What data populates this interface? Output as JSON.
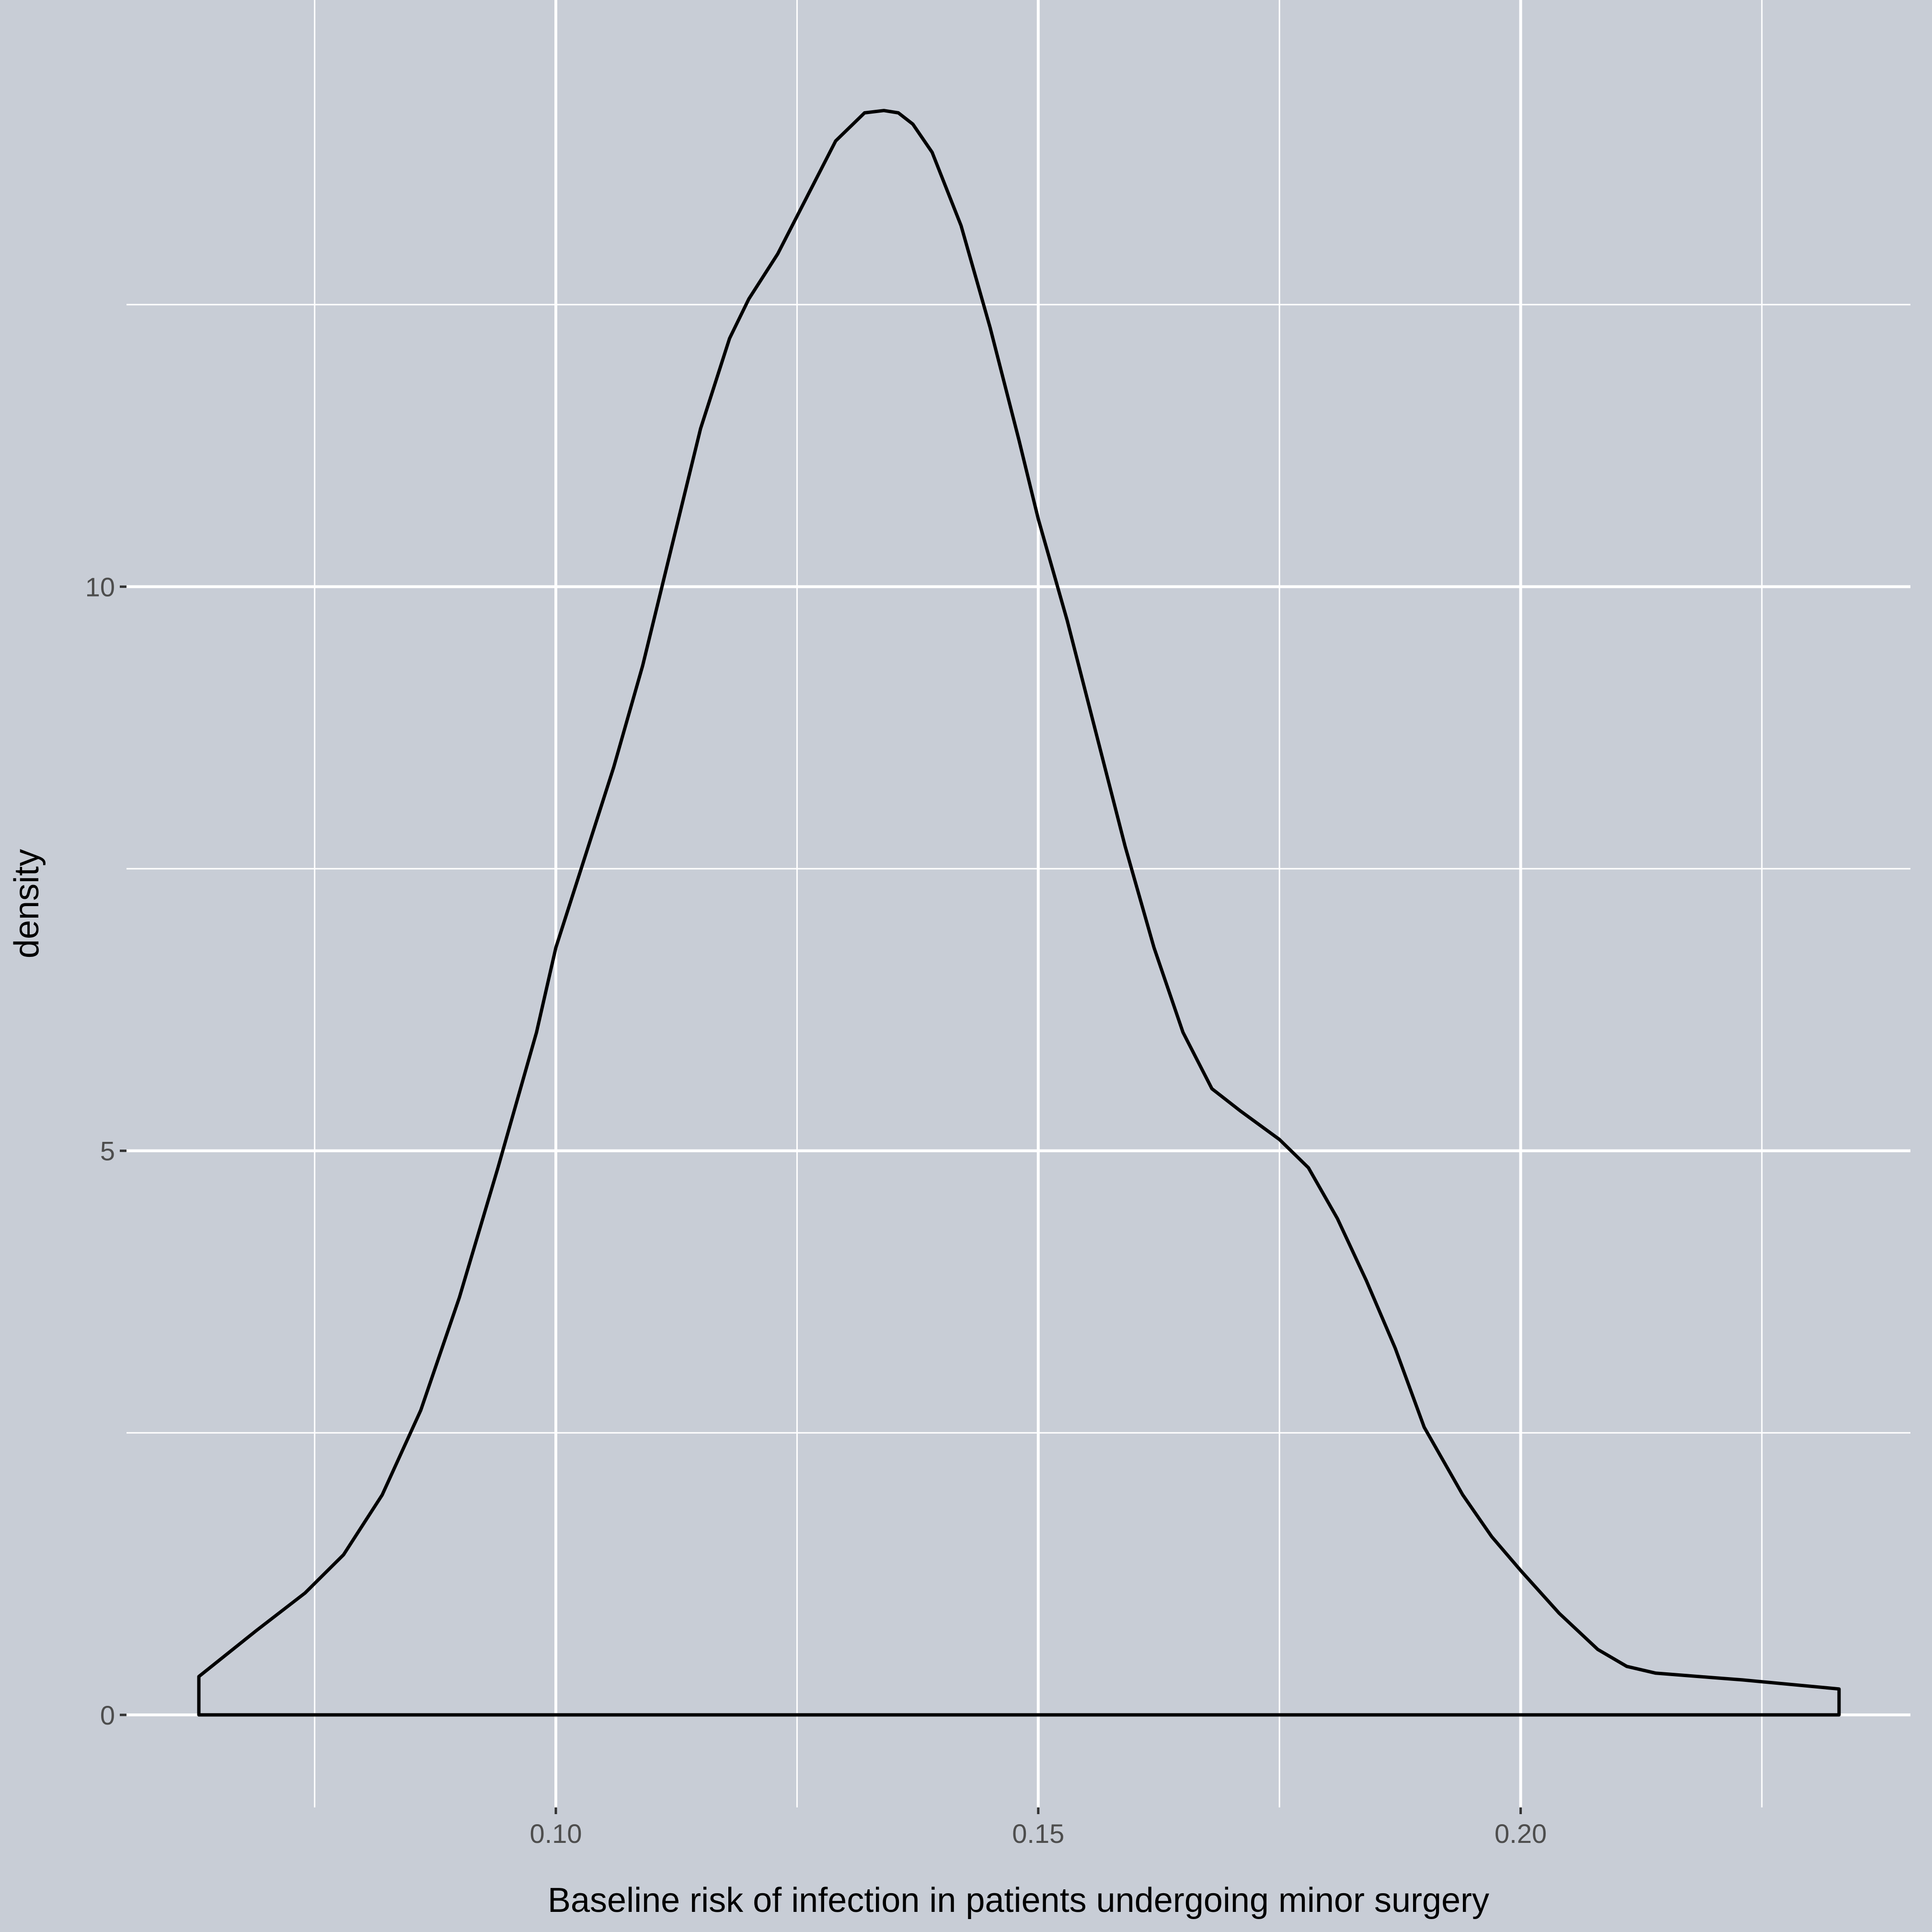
{
  "colors": {
    "panel_background": "#c8cdd6",
    "plot_background": "#c8cdd6",
    "grid_major": "#ffffff",
    "grid_minor": "#ffffff",
    "density_line": "#000000",
    "tick_text": "#4d4d4d"
  },
  "chart_data": {
    "type": "area",
    "geom": "density",
    "title": "",
    "xlabel": "Baseline risk of infection in patients undergoing minor surgery",
    "ylabel": "density",
    "xlim": [
      0.0555,
      0.2404
    ],
    "ylim": [
      -0.82,
      15.2
    ],
    "x_ticks": [
      0.1,
      0.15,
      0.2
    ],
    "x_tick_labels": [
      "0.10",
      "0.15",
      "0.20"
    ],
    "x_minor_ticks": [
      0.075,
      0.125,
      0.175,
      0.225
    ],
    "y_ticks": [
      0,
      5,
      10
    ],
    "y_tick_labels": [
      "0",
      "5",
      "10"
    ],
    "y_minor_ticks": [
      2.5,
      7.5,
      12.5
    ],
    "grid": true,
    "fill": "none",
    "series": [
      {
        "x": [
          0.063,
          0.063,
          0.069,
          0.074,
          0.078,
          0.082,
          0.086,
          0.09,
          0.094,
          0.098,
          0.1,
          0.103,
          0.106,
          0.109,
          0.112,
          0.115,
          0.118,
          0.12,
          0.123,
          0.126,
          0.129,
          0.132,
          0.134,
          0.1355,
          0.137,
          0.139,
          0.142,
          0.145,
          0.148,
          0.15,
          0.153,
          0.156,
          0.159,
          0.162,
          0.165,
          0.168,
          0.171,
          0.175,
          0.178,
          0.181,
          0.184,
          0.187,
          0.19,
          0.194,
          0.197,
          0.2,
          0.204,
          0.208,
          0.211,
          0.214,
          0.217,
          0.22,
          0.223,
          0.233,
          0.233,
          0.063
        ],
        "y": [
          0.0,
          0.34,
          0.75,
          1.08,
          1.42,
          1.95,
          2.7,
          3.7,
          4.85,
          6.05,
          6.8,
          7.6,
          8.4,
          9.3,
          10.35,
          11.4,
          12.2,
          12.55,
          12.95,
          13.45,
          13.95,
          14.2,
          14.22,
          14.2,
          14.1,
          13.85,
          13.2,
          12.3,
          11.3,
          10.6,
          9.7,
          8.7,
          7.7,
          6.8,
          6.05,
          5.55,
          5.35,
          5.1,
          4.85,
          4.4,
          3.85,
          3.25,
          2.55,
          1.95,
          1.58,
          1.28,
          0.9,
          0.58,
          0.43,
          0.37,
          0.35,
          0.33,
          0.31,
          0.23,
          0.0,
          0.0
        ]
      }
    ]
  }
}
